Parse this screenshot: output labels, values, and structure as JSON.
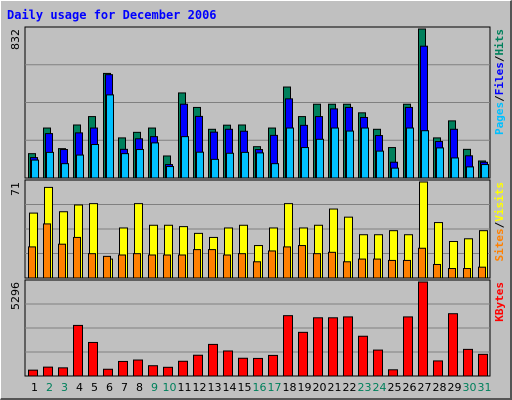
{
  "title": "Daily usage for December 2006",
  "colors": {
    "hits": "#00805c",
    "files": "#0000ff",
    "pages": "#00c0ff",
    "visits": "#ffff00",
    "sites": "#ff8000",
    "kbytes": "#ff0000",
    "day_weekday": "#000000",
    "day_weekend": "#00805c",
    "background": "#c0c0c0"
  },
  "legend": {
    "pages": "Pages",
    "files": "Files",
    "hits": "Hits",
    "visits": "Visits",
    "sites": "Sites",
    "kbytes": "KBytes",
    "sep": "/"
  },
  "chart_data": [
    {
      "type": "bar",
      "ymax_label": "832",
      "ylim": [
        0,
        832
      ],
      "categories": [
        "1",
        "2",
        "3",
        "4",
        "5",
        "6",
        "7",
        "8",
        "9",
        "10",
        "11",
        "12",
        "13",
        "14",
        "15",
        "16",
        "17",
        "18",
        "19",
        "20",
        "21",
        "22",
        "23",
        "24",
        "25",
        "26",
        "27",
        "28",
        "29",
        "30",
        "31"
      ],
      "series": [
        {
          "name": "Hits",
          "values": [
            136,
            279,
            164,
            296,
            343,
            584,
            224,
            255,
            279,
            123,
            475,
            394,
            272,
            295,
            296,
            175,
            279,
            508,
            343,
            412,
            412,
            412,
            364,
            272,
            170,
            412,
            832,
            224,
            319,
            160,
            95
          ]
        },
        {
          "name": "Files",
          "values": [
            114,
            248,
            159,
            252,
            279,
            577,
            160,
            219,
            231,
            75,
            412,
            344,
            256,
            272,
            261,
            159,
            238,
            442,
            294,
            343,
            386,
            394,
            338,
            237,
            88,
            394,
            736,
            204,
            272,
            124,
            88
          ]
        },
        {
          "name": "Pages",
          "values": [
            100,
            143,
            80,
            128,
            187,
            464,
            136,
            159,
            196,
            64,
            231,
            144,
            104,
            138,
            143,
            140,
            80,
            279,
            170,
            216,
            279,
            262,
            279,
            150,
            55,
            279,
            264,
            168,
            112,
            62,
            75
          ]
        }
      ]
    },
    {
      "type": "bar",
      "ymax_label": "71",
      "ylim": [
        0,
        71
      ],
      "categories": [
        "1",
        "2",
        "3",
        "4",
        "5",
        "6",
        "7",
        "8",
        "9",
        "10",
        "11",
        "12",
        "13",
        "14",
        "15",
        "16",
        "17",
        "18",
        "19",
        "20",
        "21",
        "22",
        "23",
        "24",
        "25",
        "26",
        "27",
        "28",
        "29",
        "30",
        "31"
      ],
      "series": [
        {
          "name": "Visits",
          "values": [
            48,
            67,
            49,
            54,
            55,
            14,
            37,
            55,
            39,
            39,
            38,
            33,
            30,
            37,
            39,
            24,
            37,
            55,
            37,
            39,
            51,
            45,
            32,
            32,
            35,
            32,
            71,
            41,
            27,
            29,
            35
          ]
        },
        {
          "name": "Sites",
          "values": [
            23,
            40,
            25,
            30,
            18,
            16,
            17,
            18,
            17,
            17,
            17,
            21,
            21,
            17,
            18,
            12,
            20,
            23,
            24,
            18,
            19,
            12,
            14,
            14,
            13,
            13,
            22,
            10,
            7,
            7,
            8
          ]
        }
      ]
    },
    {
      "type": "bar",
      "ymax_label": "5296",
      "ylim": [
        0,
        5296
      ],
      "categories": [
        "1",
        "2",
        "3",
        "4",
        "5",
        "6",
        "7",
        "8",
        "9",
        "10",
        "11",
        "12",
        "13",
        "14",
        "15",
        "16",
        "17",
        "18",
        "19",
        "20",
        "21",
        "22",
        "23",
        "24",
        "25",
        "26",
        "27",
        "28",
        "29",
        "30",
        "31"
      ],
      "series": [
        {
          "name": "KBytes",
          "values": [
            330,
            500,
            460,
            2850,
            1890,
            380,
            820,
            900,
            580,
            490,
            830,
            1170,
            1780,
            1410,
            1000,
            990,
            1160,
            3400,
            2460,
            3280,
            3280,
            3330,
            2240,
            1460,
            350,
            3330,
            5296,
            850,
            3510,
            1500,
            1220
          ]
        }
      ]
    }
  ],
  "weekend_days": [
    "2",
    "3",
    "9",
    "10",
    "16",
    "17",
    "23",
    "24",
    "30",
    "31"
  ]
}
